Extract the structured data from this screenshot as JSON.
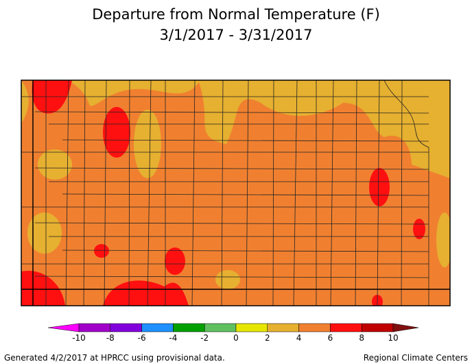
{
  "header": {
    "title": "Departure from Normal Temperature (F)",
    "subtitle": "3/1/2017 - 3/31/2017"
  },
  "colorbar": {
    "ticks": [
      -10,
      -8,
      -6,
      -4,
      -2,
      0,
      2,
      4,
      6,
      8,
      10
    ],
    "colors": [
      "#ff00ff",
      "#a000c8",
      "#8200dc",
      "#1e90ff",
      "#00a000",
      "#60c060",
      "#e6e600",
      "#e6b030",
      "#f08030",
      "#ff1010",
      "#c00000",
      "#801010"
    ]
  },
  "footer": {
    "left": "Generated 4/2/2017 at HPRCC using provisional data.",
    "right": "Regional Climate Centers"
  }
}
